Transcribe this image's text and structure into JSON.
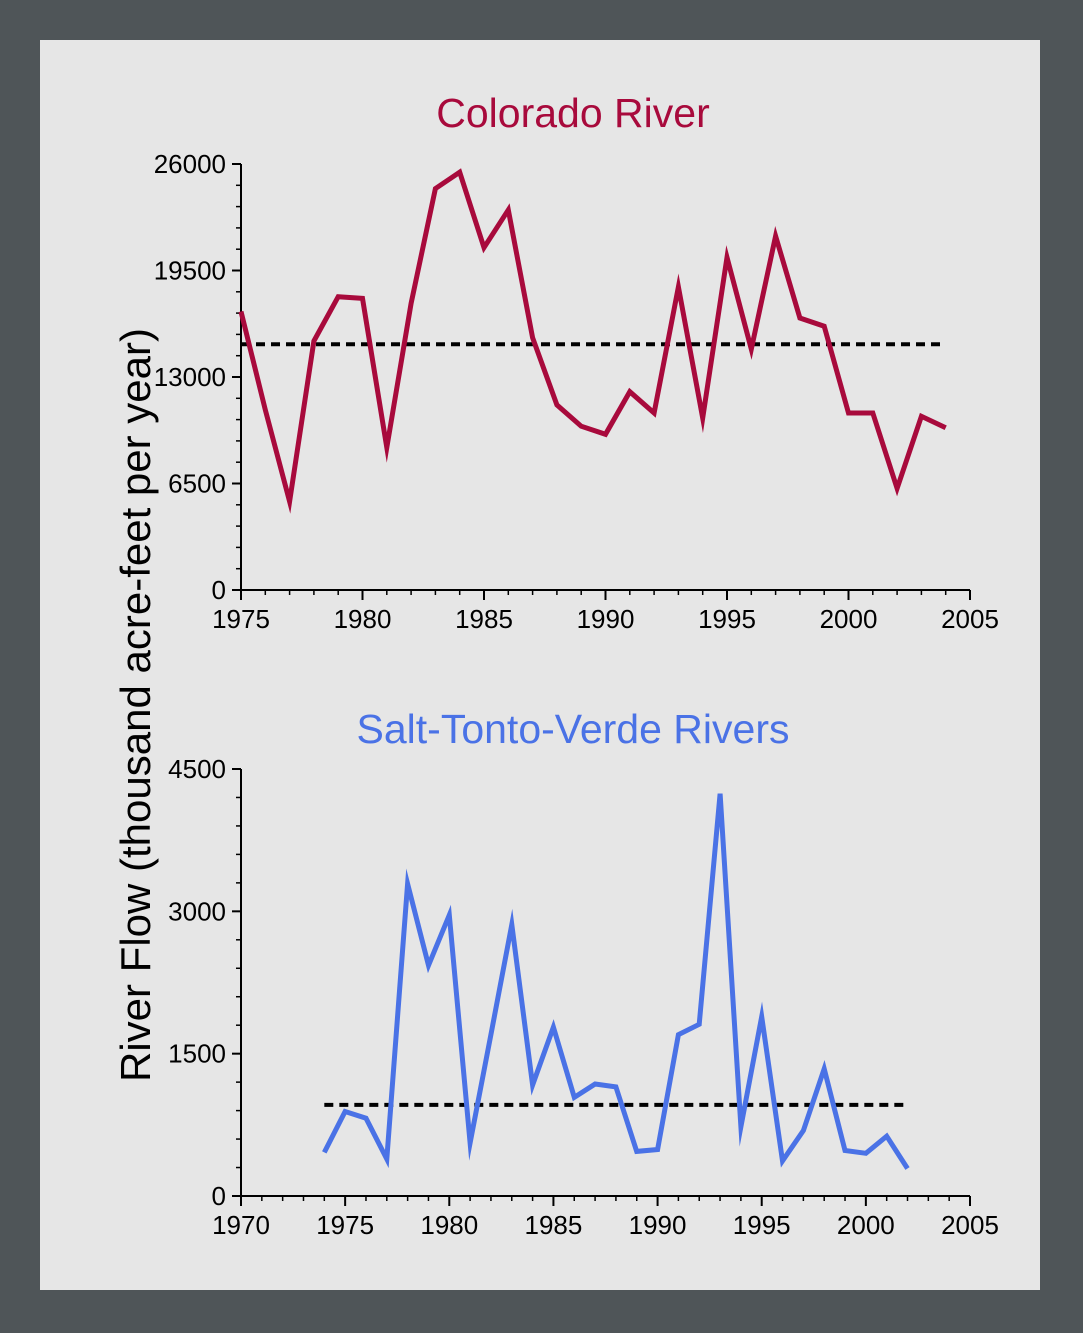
{
  "colors": {
    "background": "#4f5558",
    "panel": "#e6e6e6",
    "colorado": "#a80a3c",
    "salt": "#4a72e6",
    "average_line": "#000000"
  },
  "ylabel": "River Flow (thousand acre-feet per year)",
  "chart_data": [
    {
      "type": "line",
      "title": "Colorado River",
      "xlabel": "",
      "ylabel": "River Flow (thousand acre-feet per year)",
      "xlim": [
        1975,
        2005
      ],
      "ylim": [
        0,
        26000
      ],
      "xticks": [
        1975,
        1980,
        1985,
        1990,
        1995,
        2000,
        2005
      ],
      "yticks": [
        0,
        6500,
        13000,
        19500,
        26000
      ],
      "grid": false,
      "series": [
        {
          "x": [
            1975,
            1976,
            1977,
            1978,
            1979,
            1980,
            1981,
            1982,
            1983,
            1984,
            1985,
            1986,
            1987,
            1988,
            1989,
            1990,
            1991,
            1992,
            1993,
            1994,
            1995,
            1996,
            1997,
            1998,
            1999,
            2000,
            2001,
            2002,
            2003,
            2004
          ],
          "values": [
            17000,
            11000,
            5400,
            15200,
            17900,
            17800,
            8700,
            17500,
            24500,
            25500,
            20900,
            23200,
            15400,
            11300,
            10000,
            9500,
            12100,
            10800,
            18500,
            10500,
            20300,
            14700,
            21600,
            16600,
            16100,
            10800,
            10800,
            6200,
            10600,
            9900
          ],
          "color": "#a80a3c"
        }
      ],
      "reference_line": {
        "y": 15000,
        "x_range": [
          1975,
          2004
        ],
        "style": "dashed"
      }
    },
    {
      "type": "line",
      "title": "Salt-Tonto-Verde Rivers",
      "xlabel": "",
      "ylabel": "River Flow (thousand acre-feet per year)",
      "xlim": [
        1970,
        2005
      ],
      "ylim": [
        0,
        4500
      ],
      "xticks": [
        1970,
        1975,
        1980,
        1985,
        1990,
        1995,
        2000,
        2005
      ],
      "yticks": [
        0,
        1500,
        3000,
        4500
      ],
      "grid": false,
      "series": [
        {
          "x": [
            1974,
            1975,
            1976,
            1977,
            1978,
            1979,
            1980,
            1981,
            1982,
            1983,
            1984,
            1985,
            1986,
            1987,
            1988,
            1989,
            1990,
            1991,
            1992,
            1993,
            1994,
            1995,
            1996,
            1997,
            1998,
            1999,
            2000,
            2001,
            2002
          ],
          "values": [
            460,
            890,
            820,
            390,
            3290,
            2430,
            2960,
            560,
            1700,
            2860,
            1170,
            1780,
            1040,
            1180,
            1150,
            470,
            490,
            1700,
            1810,
            4240,
            730,
            1890,
            370,
            690,
            1340,
            480,
            450,
            630,
            290
          ],
          "color": "#4a72e6"
        }
      ],
      "reference_line": {
        "y": 960,
        "x_range": [
          1974,
          2002
        ],
        "style": "dashed"
      }
    }
  ]
}
